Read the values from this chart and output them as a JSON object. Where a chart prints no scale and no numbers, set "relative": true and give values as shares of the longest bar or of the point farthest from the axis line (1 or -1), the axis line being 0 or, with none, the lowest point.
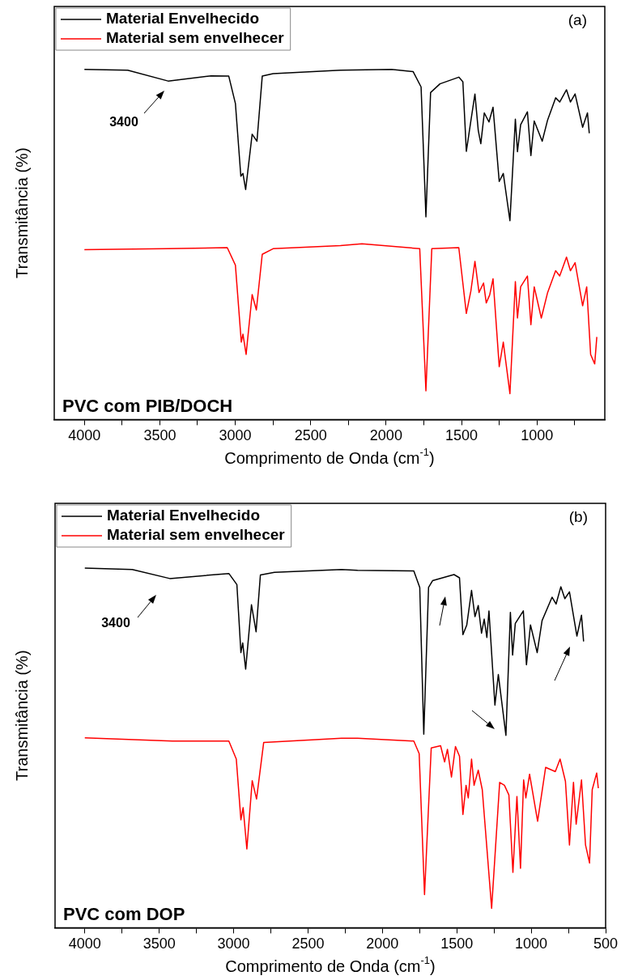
{
  "chart_data": [
    {
      "type": "line",
      "xlabel": "Comprimento de Onda (cm$^{-1}$)",
      "ylabel": "Transmitância (%)",
      "relative": true,
      "legend": "top left",
      "marker": "none",
      "xlim": [
        4200,
        550
      ],
      "xticks": [
        4000,
        {
          "value": 3750,
          "label": null
        },
        3500,
        {
          "value": 3250,
          "label": null
        },
        3000,
        {
          "value": 2750,
          "label": null
        },
        2500,
        {
          "value": 2250,
          "label": null
        },
        2000,
        {
          "value": 1750,
          "label": null
        },
        1500,
        {
          "value": 1250,
          "label": null
        },
        1000,
        {
          "value": 750,
          "label": null
        }
      ],
      "annotations": [
        "(a)",
        "PVC com PIB/DOCH",
        "3400"
      ],
      "series": [
        {
          "name": "Material Envelhecido",
          "color": "#000000",
          "x": [
            4000,
            3713,
            3445,
            3160,
            3043,
            2999,
            2963,
            2949,
            2931,
            2888,
            2856,
            2821,
            2749,
            2303,
            1964,
            1821,
            1768,
            1736,
            1705,
            1643,
            1518,
            1491,
            1468,
            1438,
            1411,
            1389,
            1372,
            1349,
            1318,
            1291,
            1250,
            1223,
            1179,
            1143,
            1129,
            1108,
            1063,
            1040,
            1018,
            965,
            929,
            876,
            849,
            804,
            778,
            747,
            697,
            665,
            653
          ],
          "values": [
            1.0,
            0.998,
            0.967,
            0.982,
            0.981,
            0.903,
            0.695,
            0.703,
            0.657,
            0.815,
            0.795,
            0.981,
            0.988,
            0.998,
            1.0,
            0.994,
            0.95,
            0.579,
            0.934,
            0.959,
            0.978,
            0.965,
            0.766,
            0.853,
            0.93,
            0.826,
            0.788,
            0.876,
            0.85,
            0.892,
            0.68,
            0.703,
            0.568,
            0.858,
            0.765,
            0.842,
            0.879,
            0.754,
            0.853,
            0.795,
            0.856,
            0.919,
            0.907,
            0.942,
            0.907,
            0.93,
            0.835,
            0.876,
            0.818
          ]
        },
        {
          "name": "Material sem envelhecer",
          "color": "#ff0000",
          "x": [
            4000,
            3445,
            3053,
            2999,
            2960,
            2949,
            2928,
            2888,
            2860,
            2821,
            2749,
            2303,
            2160,
            1777,
            1736,
            1697,
            1518,
            1468,
            1438,
            1411,
            1384,
            1354,
            1336,
            1313,
            1291,
            1250,
            1223,
            1179,
            1143,
            1129,
            1108,
            1063,
            1040,
            1018,
            971,
            929,
            876,
            849,
            804,
            778,
            747,
            697,
            670,
            644,
            617,
            603
          ],
          "values": [
            0.485,
            0.488,
            0.491,
            0.441,
            0.221,
            0.244,
            0.186,
            0.357,
            0.313,
            0.472,
            0.488,
            0.497,
            0.502,
            0.488,
            0.082,
            0.488,
            0.491,
            0.303,
            0.367,
            0.452,
            0.363,
            0.39,
            0.333,
            0.356,
            0.402,
            0.151,
            0.221,
            0.074,
            0.394,
            0.29,
            0.379,
            0.41,
            0.271,
            0.379,
            0.29,
            0.363,
            0.425,
            0.41,
            0.464,
            0.425,
            0.448,
            0.325,
            0.379,
            0.186,
            0.159,
            0.236
          ]
        }
      ]
    },
    {
      "type": "line",
      "xlabel": "Comprimento de Onda (cm$^{-1}$)",
      "ylabel": "Transmitância (%)",
      "relative": true,
      "legend": "top left",
      "marker": "none",
      "xlim": [
        4200,
        500
      ],
      "xticks": [
        4000,
        {
          "value": 3750,
          "label": null
        },
        3500,
        {
          "value": 3250,
          "label": null
        },
        3000,
        {
          "value": 2750,
          "label": null
        },
        2500,
        {
          "value": 2250,
          "label": null
        },
        2000,
        {
          "value": 1750,
          "label": null
        },
        1500,
        {
          "value": 1250,
          "label": null
        },
        1000,
        {
          "value": 750,
          "label": null
        },
        500
      ],
      "annotations": [
        "(b)",
        "PVC com DOP",
        "3400"
      ],
      "series": [
        {
          "name": "Material Envelhecido",
          "color": "#000000",
          "x": [
            4000,
            3681,
            3429,
            3032,
            2978,
            2951,
            2939,
            2919,
            2880,
            2849,
            2820,
            2726,
            2275,
            2167,
            1789,
            1749,
            1722,
            1690,
            1663,
            1519,
            1482,
            1459,
            1433,
            1401,
            1378,
            1356,
            1334,
            1316,
            1298,
            1284,
            1244,
            1221,
            1170,
            1140,
            1125,
            1107,
            1053,
            1032,
            1005,
            960,
            927,
            860,
            833,
            801,
            774,
            743,
            693,
            662,
            648
          ],
          "values": [
            1.0,
            0.996,
            0.971,
            0.985,
            0.954,
            0.765,
            0.792,
            0.719,
            0.898,
            0.823,
            0.981,
            0.988,
            0.996,
            0.994,
            0.992,
            0.946,
            0.538,
            0.946,
            0.965,
            0.982,
            0.973,
            0.815,
            0.842,
            0.938,
            0.865,
            0.896,
            0.819,
            0.858,
            0.807,
            0.881,
            0.619,
            0.704,
            0.535,
            0.877,
            0.758,
            0.846,
            0.881,
            0.731,
            0.842,
            0.765,
            0.854,
            0.919,
            0.9,
            0.948,
            0.915,
            0.934,
            0.811,
            0.869,
            0.796
          ]
        },
        {
          "name": "Material sem envelhecer",
          "color": "#ff0000",
          "x": [
            4000,
            3411,
            3032,
            2982,
            2951,
            2936,
            2911,
            2875,
            2846,
            2798,
            2275,
            2167,
            1789,
            1753,
            1717,
            1672,
            1609,
            1582,
            1563,
            1536,
            1509,
            1482,
            1459,
            1438,
            1423,
            1401,
            1384,
            1356,
            1329,
            1266,
            1212,
            1180,
            1150,
            1123,
            1096,
            1072,
            1051,
            1036,
            1011,
            957,
            903,
            838,
            806,
            770,
            743,
            716,
            698,
            662,
            635,
            608,
            590,
            560,
            549
          ],
          "values": [
            0.528,
            0.519,
            0.519,
            0.469,
            0.3,
            0.334,
            0.219,
            0.409,
            0.358,
            0.515,
            0.527,
            0.527,
            0.519,
            0.484,
            0.092,
            0.5,
            0.506,
            0.461,
            0.496,
            0.419,
            0.504,
            0.477,
            0.315,
            0.396,
            0.361,
            0.469,
            0.396,
            0.438,
            0.384,
            0.054,
            0.404,
            0.396,
            0.369,
            0.154,
            0.365,
            0.165,
            0.411,
            0.361,
            0.427,
            0.296,
            0.446,
            0.434,
            0.469,
            0.407,
            0.23,
            0.404,
            0.288,
            0.411,
            0.23,
            0.18,
            0.384,
            0.43,
            0.388
          ]
        }
      ]
    }
  ]
}
